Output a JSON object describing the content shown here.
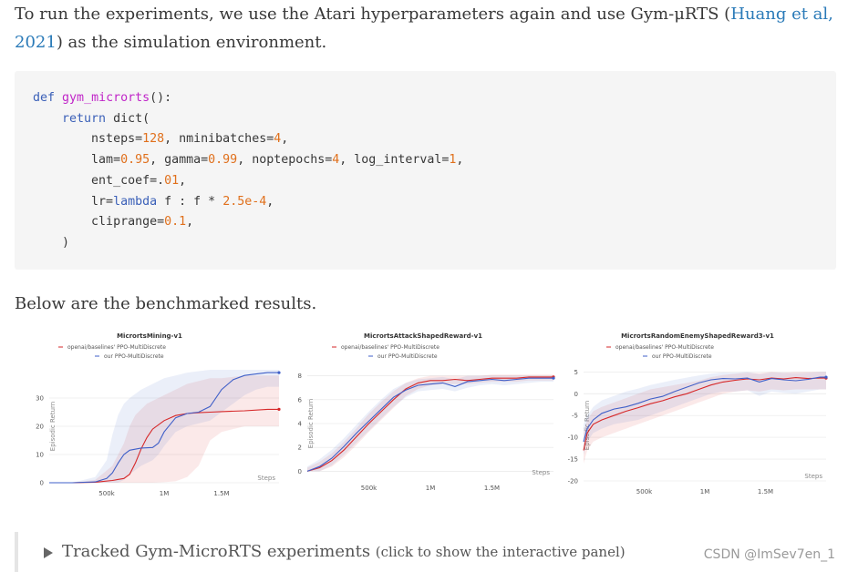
{
  "intro": {
    "text_before": "To run the experiments, we use the Atari hyperparameters again and use Gym-μRTS (",
    "link": "Huang et al, 2021",
    "text_after": ") as the simulation environment."
  },
  "code": {
    "kw_def": "def",
    "fn_name": "gym_microrts",
    "sig_rest": "():",
    "kw_return": "return",
    "dict_call": " dict(",
    "l3a": "nsteps=",
    "l3b": "128",
    "l3c": ", nminibatches=",
    "l3d": "4",
    "l3e": ",",
    "l4a": "lam=",
    "l4b": "0.95",
    "l4c": ", gamma=",
    "l4d": "0.99",
    "l4e": ", noptepochs=",
    "l4f": "4",
    "l4g": ", log_interval=",
    "l4h": "1",
    "l4i": ",",
    "l5a": "ent_coef=.",
    "l5b": "01",
    "l5c": ",",
    "l6a": "lr=",
    "l6b": "lambda",
    "l6c": " f : f * ",
    "l6d": "2.5e-4",
    "l6e": ",",
    "l7a": "cliprange=",
    "l7b": "0.1",
    "l7c": ",",
    "close": ")"
  },
  "below_text": "Below are the benchmarked results.",
  "legend": {
    "baseline": "openai/baselines' PPO-MultiDiscrete",
    "ours": "our PPO-MultiDiscrete"
  },
  "colors": {
    "baseline": "#d62728",
    "ours": "#3f5fc8"
  },
  "chart_data": [
    {
      "type": "line",
      "title": "MicrortsMining-v1",
      "xlabel": "Steps",
      "ylabel": "Episodic Return",
      "xlim": [
        0,
        2000000
      ],
      "ylim": [
        0,
        40
      ],
      "xticks": [
        500000,
        1000000,
        1500000
      ],
      "xtick_labels": [
        "500k",
        "1M",
        "1.5M"
      ],
      "yticks": [
        0,
        10,
        20,
        30
      ],
      "series": [
        {
          "name": "openai/baselines' PPO-MultiDiscrete",
          "color": "#d62728",
          "x": [
            0,
            200000,
            400000,
            550000,
            650000,
            700000,
            750000,
            800000,
            850000,
            900000,
            1000000,
            1100000,
            1200000,
            1300000,
            1400000,
            1500000,
            1700000,
            1900000,
            2000000
          ],
          "y": [
            0,
            0,
            0.2,
            0.8,
            1.5,
            3,
            7,
            12,
            16,
            19,
            22,
            23.8,
            24.5,
            24.8,
            25,
            25.2,
            25.5,
            26,
            26
          ],
          "band_low": [
            0,
            0,
            0,
            0,
            0,
            0,
            0,
            0,
            0,
            0,
            0.2,
            0.5,
            2,
            6,
            15,
            18,
            20,
            20,
            20
          ],
          "band_high": [
            0,
            0,
            1,
            6,
            14,
            20,
            24,
            26,
            28,
            29,
            31,
            33,
            35,
            36,
            37,
            37,
            38,
            38,
            38
          ]
        },
        {
          "name": "our PPO-MultiDiscrete",
          "color": "#3f5fc8",
          "x": [
            0,
            200000,
            400000,
            500000,
            550000,
            600000,
            650000,
            700000,
            800000,
            900000,
            950000,
            1000000,
            1100000,
            1200000,
            1300000,
            1400000,
            1500000,
            1600000,
            1700000,
            1800000,
            1900000,
            2000000
          ],
          "y": [
            0,
            0,
            0.3,
            1.5,
            3.5,
            7,
            10,
            11.5,
            12.3,
            12.5,
            14,
            18,
            23,
            24.5,
            25,
            27,
            33,
            36.5,
            38,
            38.5,
            39,
            39
          ],
          "band_low": [
            0,
            0,
            0,
            0,
            0,
            0,
            1,
            3,
            6,
            8,
            10,
            13,
            18,
            20,
            21,
            22,
            25,
            28,
            31,
            33,
            34,
            34
          ],
          "band_high": [
            0,
            0,
            2,
            8,
            17,
            24,
            28,
            30,
            33,
            35,
            36,
            37,
            38,
            39,
            39.5,
            40,
            40,
            40,
            40,
            40,
            40,
            40
          ]
        }
      ]
    },
    {
      "type": "line",
      "title": "MicrortsAttackShapedReward-v1",
      "xlabel": "Steps",
      "ylabel": "Episodic Return",
      "xlim": [
        0,
        2000000
      ],
      "ylim": [
        -0.5,
        8.5
      ],
      "xticks": [
        500000,
        1000000,
        1500000
      ],
      "xtick_labels": [
        "500k",
        "1M",
        "1.5M"
      ],
      "yticks": [
        0,
        2,
        4,
        6,
        8
      ],
      "series": [
        {
          "name": "openai/baselines' PPO-MultiDiscrete",
          "color": "#d62728",
          "x": [
            0,
            100000,
            200000,
            300000,
            400000,
            500000,
            600000,
            700000,
            800000,
            900000,
            1000000,
            1100000,
            1200000,
            1300000,
            1400000,
            1500000,
            1600000,
            1700000,
            1800000,
            1900000,
            2000000
          ],
          "y": [
            0,
            0.3,
            0.9,
            1.8,
            2.9,
            4.0,
            5.0,
            6.0,
            6.9,
            7.4,
            7.6,
            7.6,
            7.7,
            7.6,
            7.7,
            7.8,
            7.8,
            7.8,
            7.9,
            7.9,
            7.9
          ],
          "band_low": [
            0,
            0,
            0.4,
            1.2,
            2.2,
            3.3,
            4.3,
            5.3,
            6.3,
            6.9,
            7.2,
            7.3,
            7.3,
            7.3,
            7.4,
            7.5,
            7.5,
            7.5,
            7.6,
            7.6,
            7.6
          ],
          "band_high": [
            0.3,
            0.8,
            1.5,
            2.5,
            3.6,
            4.8,
            5.8,
            6.7,
            7.4,
            7.8,
            8.0,
            8.0,
            8.0,
            8.0,
            8.0,
            8.1,
            8.1,
            8.1,
            8.1,
            8.1,
            8.1
          ]
        },
        {
          "name": "our PPO-MultiDiscrete",
          "color": "#3f5fc8",
          "x": [
            0,
            100000,
            200000,
            300000,
            400000,
            500000,
            600000,
            700000,
            800000,
            900000,
            1000000,
            1100000,
            1200000,
            1300000,
            1400000,
            1500000,
            1600000,
            1700000,
            1800000,
            1900000,
            2000000
          ],
          "y": [
            0,
            0.4,
            1.1,
            2.1,
            3.2,
            4.2,
            5.2,
            6.2,
            6.8,
            7.2,
            7.3,
            7.4,
            7.1,
            7.5,
            7.6,
            7.7,
            7.6,
            7.7,
            7.8,
            7.8,
            7.8
          ],
          "band_low": [
            0,
            0,
            0.5,
            1.4,
            2.4,
            3.4,
            4.4,
            5.4,
            6.2,
            6.7,
            6.8,
            6.9,
            6.7,
            7.0,
            7.2,
            7.3,
            7.2,
            7.3,
            7.4,
            7.5,
            7.5
          ],
          "band_high": [
            0.4,
            1.0,
            1.8,
            2.8,
            3.9,
            5.0,
            6.0,
            6.9,
            7.4,
            7.7,
            7.8,
            7.9,
            7.7,
            8.0,
            8.0,
            8.0,
            8.0,
            8.0,
            8.0,
            8.0,
            8.0
          ]
        }
      ]
    },
    {
      "type": "line",
      "title": "MicrortsRandomEnemyShapedReward3-v1",
      "xlabel": "Steps",
      "ylabel": "Episodic Return",
      "xlim": [
        0,
        2000000
      ],
      "ylim": [
        -20,
        5.5
      ],
      "xticks": [
        500000,
        1000000,
        1500000
      ],
      "xtick_labels": [
        "500k",
        "1M",
        "1.5M"
      ],
      "yticks": [
        -20,
        -15,
        -10,
        -5,
        0,
        5
      ],
      "series": [
        {
          "name": "openai/baselines' PPO-MultiDiscrete",
          "color": "#d62728",
          "x": [
            0,
            30000,
            80000,
            150000,
            250000,
            350000,
            450000,
            550000,
            650000,
            750000,
            850000,
            950000,
            1050000,
            1150000,
            1250000,
            1350000,
            1450000,
            1550000,
            1650000,
            1750000,
            1850000,
            1950000,
            2000000
          ],
          "y": [
            -13,
            -9,
            -7,
            -6,
            -5,
            -4,
            -3.2,
            -2.3,
            -1.6,
            -0.7,
            0,
            1,
            2,
            2.7,
            3.1,
            3.4,
            3.2,
            3.6,
            3.4,
            3.7,
            3.5,
            3.6,
            3.6
          ],
          "band_low": [
            -16,
            -13,
            -11,
            -10,
            -9,
            -8,
            -7,
            -6,
            -5,
            -4,
            -3,
            -2,
            -1,
            0,
            0.5,
            0.8,
            0.5,
            1,
            0.8,
            1,
            1,
            1,
            1
          ],
          "band_high": [
            -9,
            -6,
            -4,
            -3,
            -2,
            -1,
            0,
            1,
            1.5,
            2,
            2.5,
            3,
            3.8,
            4.3,
            4.6,
            4.8,
            4.7,
            5,
            4.8,
            5,
            5,
            5,
            5
          ]
        },
        {
          "name": "our PPO-MultiDiscrete",
          "color": "#3f5fc8",
          "x": [
            0,
            30000,
            80000,
            150000,
            250000,
            350000,
            450000,
            550000,
            650000,
            750000,
            850000,
            950000,
            1050000,
            1150000,
            1250000,
            1350000,
            1450000,
            1550000,
            1650000,
            1750000,
            1850000,
            1950000,
            2000000
          ],
          "y": [
            -11,
            -8,
            -6,
            -4.5,
            -3.5,
            -3,
            -2.2,
            -1.2,
            -0.6,
            0.5,
            1.5,
            2.5,
            3.2,
            3.5,
            3.4,
            3.6,
            2.7,
            3.5,
            3.2,
            3.0,
            3.3,
            3.8,
            3.8
          ],
          "band_low": [
            -14,
            -11,
            -9,
            -8,
            -7,
            -6.5,
            -6,
            -5,
            -4,
            -3,
            -2,
            -1,
            0,
            0.5,
            0.5,
            0.8,
            -0.5,
            0.5,
            0.2,
            0,
            0.5,
            1,
            1
          ],
          "band_high": [
            -7,
            -5,
            -3,
            -1.5,
            -0.5,
            0.5,
            1.2,
            2,
            2.6,
            3.2,
            3.7,
            4.2,
            4.6,
            4.9,
            4.8,
            5,
            4.5,
            4.9,
            4.8,
            4.7,
            4.8,
            5,
            5
          ]
        }
      ]
    }
  ],
  "details": {
    "summary": "Tracked Gym-MicroRTS experiments",
    "note": "(click to show the interactive panel)"
  },
  "watermark": "CSDN @ImSev7en_1"
}
